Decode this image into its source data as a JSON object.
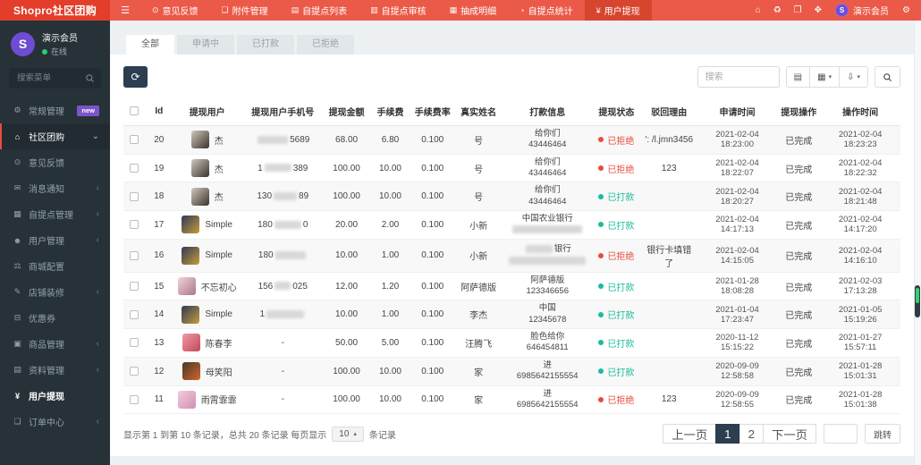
{
  "brand": {
    "logo_text": "Shopro社区团购",
    "avatar_letter": "S"
  },
  "colors": {
    "topbar": "#eb5a48",
    "logo_bg": "#e23e2b",
    "sidebar": "#273238",
    "primary_dark": "#2c3e50",
    "status_paid": "#1abc9c",
    "status_rejected": "#e74c3c",
    "avatar_purple": "#6f4cd4",
    "badge_purple": "#7a55c8",
    "online_green": "#2ecc71"
  },
  "topbar": {
    "nav": [
      {
        "label": "意见反馈",
        "glyph": "⊙",
        "icon": "feedback-icon",
        "active": false
      },
      {
        "label": "附件管理",
        "glyph": "❏",
        "icon": "attachment-icon",
        "active": false
      },
      {
        "label": "自提点列表",
        "glyph": "▤",
        "icon": "pickup-list-icon",
        "active": false
      },
      {
        "label": "自提点审核",
        "glyph": "▥",
        "icon": "pickup-audit-icon",
        "active": false
      },
      {
        "label": "抽成明细",
        "glyph": "▦",
        "icon": "commission-icon",
        "active": false
      },
      {
        "label": "自提点统计",
        "glyph": "◔",
        "icon": "pickup-stats-icon",
        "active": false
      },
      {
        "label": "用户提现",
        "glyph": "¥",
        "icon": "withdraw-icon",
        "active": true
      }
    ],
    "right_icons": [
      {
        "glyph": "⌂",
        "icon": "home-icon"
      },
      {
        "glyph": "♻",
        "icon": "trash-icon"
      },
      {
        "glyph": "❐",
        "icon": "pages-icon"
      },
      {
        "glyph": "✥",
        "icon": "fullscreen-icon"
      }
    ],
    "user_name": "演示会员",
    "gear_glyph": "⚙"
  },
  "sidebar": {
    "profile": {
      "name": "演示会员",
      "status": "在线"
    },
    "search_placeholder": "搜索菜单",
    "items": [
      {
        "label": "常规管理",
        "glyph": "⚙",
        "icon": "gear-icon",
        "badge": "new"
      },
      {
        "label": "社区团购",
        "glyph": "⌂",
        "icon": "home-icon",
        "parent_active": true,
        "expanded": true,
        "children": [
          {
            "label": "意见反馈",
            "glyph": "⊙",
            "icon": "feedback-icon"
          },
          {
            "label": "消息通知",
            "glyph": "✉",
            "icon": "notice-icon",
            "arrow": true
          },
          {
            "label": "自提点管理",
            "glyph": "▦",
            "icon": "pickup-manage-icon",
            "arrow": true
          },
          {
            "label": "用户管理",
            "glyph": "☻",
            "icon": "user-manage-icon",
            "arrow": true
          },
          {
            "label": "商城配置",
            "glyph": "⚖",
            "icon": "mall-config-icon"
          },
          {
            "label": "店铺装修",
            "glyph": "✎",
            "icon": "shop-decorate-icon",
            "arrow": true
          },
          {
            "label": "优惠券",
            "glyph": "⊟",
            "icon": "coupon-icon"
          },
          {
            "label": "商品管理",
            "glyph": "▣",
            "icon": "goods-manage-icon",
            "arrow": true
          },
          {
            "label": "资料管理",
            "glyph": "▤",
            "icon": "material-manage-icon",
            "arrow": true
          },
          {
            "label": "用户提现",
            "glyph": "¥",
            "icon": "withdraw-icon",
            "current": true
          },
          {
            "label": "订单中心",
            "glyph": "❏",
            "icon": "order-center-icon",
            "arrow": true
          }
        ]
      }
    ]
  },
  "tabs": [
    {
      "label": "全部",
      "active": true
    },
    {
      "label": "申请中",
      "active": false
    },
    {
      "label": "已打款",
      "active": false
    },
    {
      "label": "已拒绝",
      "active": false
    }
  ],
  "toolbar": {
    "refresh_glyph": "⟳",
    "search_placeholder": "搜索",
    "buttons": [
      {
        "glyph": "▤",
        "icon": "view-toggle-icon",
        "caret": false
      },
      {
        "glyph": "▦",
        "icon": "columns-icon",
        "caret": true
      },
      {
        "glyph": "⇩",
        "icon": "export-icon",
        "caret": true
      }
    ]
  },
  "table": {
    "columns": [
      "Id",
      "提现用户",
      "提现用户手机号",
      "提现金额",
      "手续费",
      "手续费率",
      "真实姓名",
      "打款信息",
      "提现状态",
      "驳回理由",
      "申请时间",
      "提现操作",
      "操作时间"
    ],
    "status_labels": {
      "paid": "已打款",
      "rejected": "已拒绝"
    },
    "rows": [
      {
        "id": "20",
        "user": "杰",
        "avatar": [
          "#cfc8bd",
          "#3a332c"
        ],
        "phone": {
          "pre": "",
          "blur": 34,
          "post": "5689"
        },
        "amount": "68.00",
        "fee": "6.80",
        "rate": "0.100",
        "realname": "号",
        "pay": {
          "l1": "给你们",
          "l2": "43446464"
        },
        "status": "rejected",
        "reason": "': /l.jmn3456",
        "applied": "2021-02-04 18:23:00",
        "operation": "已完成",
        "op_time": "2021-02-04 18:23:23"
      },
      {
        "id": "19",
        "user": "杰",
        "avatar": [
          "#cfc8bd",
          "#3a332c"
        ],
        "phone": {
          "pre": "1",
          "blur": 30,
          "post": "389"
        },
        "amount": "100.00",
        "fee": "10.00",
        "rate": "0.100",
        "realname": "号",
        "pay": {
          "l1": "给你们",
          "l2": "43446464"
        },
        "status": "rejected",
        "reason": "123",
        "applied": "2021-02-04 18:22:07",
        "operation": "已完成",
        "op_time": "2021-02-04 18:22:32"
      },
      {
        "id": "18",
        "user": "杰",
        "avatar": [
          "#cfc8bd",
          "#3a332c"
        ],
        "phone": {
          "pre": "130",
          "blur": 26,
          "post": "89"
        },
        "amount": "100.00",
        "fee": "10.00",
        "rate": "0.100",
        "realname": "号",
        "pay": {
          "l1": "给你们",
          "l2": "43446464"
        },
        "status": "paid",
        "reason": "",
        "applied": "2021-02-04 18:20:27",
        "operation": "已完成",
        "op_time": "2021-02-04 18:21:48"
      },
      {
        "id": "17",
        "user": "Simple",
        "avatar": [
          "#2e3a56",
          "#c79b3b"
        ],
        "phone": {
          "pre": "180",
          "blur": 30,
          "post": "0"
        },
        "amount": "20.00",
        "fee": "2.00",
        "rate": "0.100",
        "realname": "小新",
        "pay": {
          "l1": "中国农业银行",
          "l2": "",
          "l2_blur": 78
        },
        "status": "paid",
        "reason": "",
        "applied": "2021-02-04 14:17:13",
        "operation": "已完成",
        "op_time": "2021-02-04 14:17:20"
      },
      {
        "id": "16",
        "user": "Simple",
        "avatar": [
          "#2e3a56",
          "#c79b3b"
        ],
        "phone": {
          "pre": "180",
          "blur": 34,
          "post": ""
        },
        "amount": "10.00",
        "fee": "1.00",
        "rate": "0.100",
        "realname": "小新",
        "pay": {
          "l1": "银行",
          "l1_blur": 30,
          "l2": "",
          "l2_blur": 86
        },
        "status": "rejected",
        "reason": "银行卡填错了",
        "applied": "2021-02-04 14:15:05",
        "operation": "已完成",
        "op_time": "2021-02-04 14:16:10"
      },
      {
        "id": "15",
        "user": "不忘初心",
        "avatar": [
          "#f2d3d8",
          "#a9788c"
        ],
        "phone": {
          "pre": "156",
          "blur": 18,
          "post": "025"
        },
        "amount": "12.00",
        "fee": "1.20",
        "rate": "0.100",
        "realname": "阿萨德版",
        "pay": {
          "l1": "阿萨德版",
          "l2": "123346656"
        },
        "status": "paid",
        "reason": "",
        "applied": "2021-01-28 18:08:28",
        "operation": "已完成",
        "op_time": "2021-02-03 17:13:28"
      },
      {
        "id": "14",
        "user": "Simple",
        "avatar": [
          "#2e3a56",
          "#c79b3b"
        ],
        "phone": {
          "pre": "1",
          "blur": 42,
          "post": ""
        },
        "amount": "10.00",
        "fee": "1.00",
        "rate": "0.100",
        "realname": "李杰",
        "pay": {
          "l1": "中国",
          "l2": "12345678"
        },
        "status": "paid",
        "reason": "",
        "applied": "2021-01-04 17:23:47",
        "operation": "已完成",
        "op_time": "2021-01-05 15:19:26"
      },
      {
        "id": "13",
        "user": "陈春李",
        "avatar": [
          "#ef9aa6",
          "#c2485c"
        ],
        "phone": {
          "text": "-"
        },
        "amount": "50.00",
        "fee": "5.00",
        "rate": "0.100",
        "realname": "汪腾飞",
        "pay": {
          "l1": "脸色给你",
          "l2": "646454811"
        },
        "status": "paid",
        "reason": "",
        "applied": "2020-11-12 15:15:22",
        "operation": "已完成",
        "op_time": "2021-01-27 15:57:11"
      },
      {
        "id": "12",
        "user": "母笑阳",
        "avatar": [
          "#46372c",
          "#d3662b"
        ],
        "phone": {
          "text": "-"
        },
        "amount": "100.00",
        "fee": "10.00",
        "rate": "0.100",
        "realname": "家",
        "pay": {
          "l1": "进",
          "l2": "6985642155554"
        },
        "status": "paid",
        "reason": "",
        "applied": "2020-09-09 12:58:58",
        "operation": "已完成",
        "op_time": "2021-01-28 15:01:31"
      },
      {
        "id": "11",
        "user": "雨霄霏霏",
        "avatar": [
          "#f6cbdc",
          "#cf8fb4"
        ],
        "phone": {
          "text": "-"
        },
        "amount": "100.00",
        "fee": "10.00",
        "rate": "0.100",
        "realname": "家",
        "pay": {
          "l1": "进",
          "l2": "6985642155554"
        },
        "status": "rejected",
        "reason": "123",
        "applied": "2020-09-09 12:58:55",
        "operation": "已完成",
        "op_time": "2021-01-28 15:01:38"
      }
    ]
  },
  "pagination": {
    "summary_prefix": "显示第 1 到第 10 条记录，总共 20 条记录 每页显示",
    "page_size": "10",
    "summary_suffix": "条记录",
    "prev": "上一页",
    "pages": [
      "1",
      "2"
    ],
    "active_page": "1",
    "next": "下一页",
    "jump_label": "跳转"
  }
}
